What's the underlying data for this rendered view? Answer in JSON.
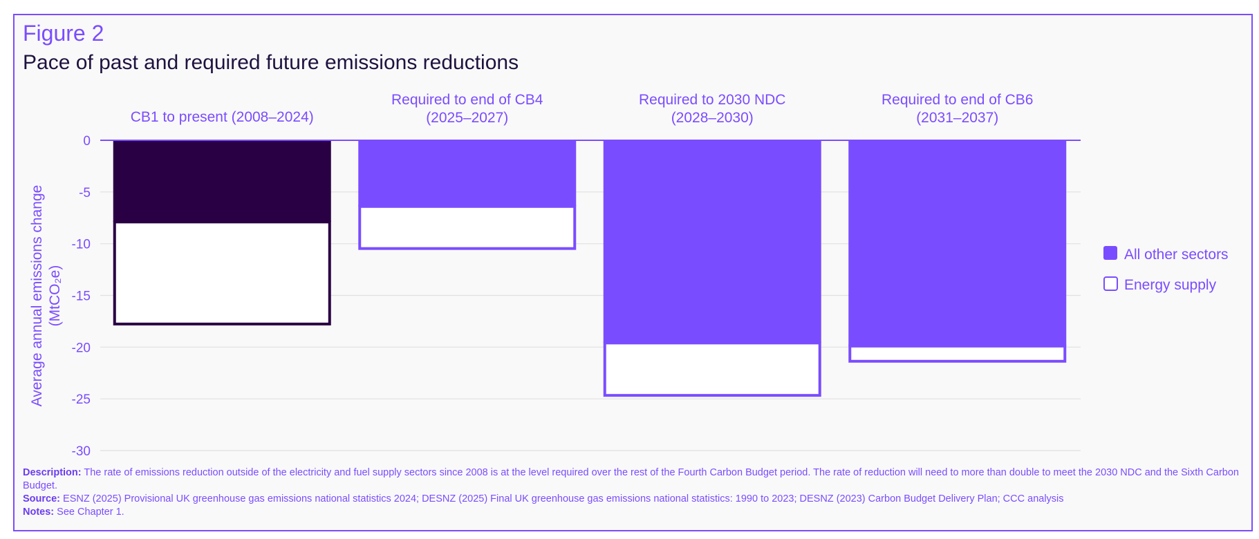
{
  "figure": {
    "label": "Figure 2",
    "title": "Pace of past and required future emissions reductions"
  },
  "chart_data": {
    "type": "bar",
    "stacked": true,
    "categories": [
      "CB1 to present (2008–2024)",
      "Required to end of CB4 (2025–2027)",
      "Required to 2030 NDC (2028–2030)",
      "Required to end of CB6 (2031–2037)"
    ],
    "category_lines": [
      [
        "CB1 to present (2008–2024)"
      ],
      [
        "Required to end of CB4",
        "(2025–2027)"
      ],
      [
        "Required to 2030 NDC",
        "(2028–2030)"
      ],
      [
        "Required to end of CB6",
        "(2031–2037)"
      ]
    ],
    "series": [
      {
        "name": "All other sectors",
        "values": [
          -7.9,
          -6.4,
          -19.6,
          -19.9
        ]
      },
      {
        "name": "Energy supply",
        "values": [
          -10.0,
          -4.2,
          -5.2,
          -1.6
        ]
      }
    ],
    "ylabel_lines": [
      "Average annual emissions change",
      "(MtCO₂e)"
    ],
    "ylim": [
      -30,
      0
    ],
    "yticks": [
      0,
      -5,
      -10,
      -15,
      -20,
      -25,
      -30
    ],
    "x_axis_position": "top",
    "grid": true,
    "legend": "right",
    "colors": {
      "all_other_sectors": "#7a4cff",
      "first_bar_all_other_sectors": "#2a0044",
      "first_bar_outline": "#2a0044",
      "energy_supply_fill": "#ffffff",
      "outline": "#7a4cff",
      "axis_text": "#7a4cff",
      "gridline": "#e0e0e0"
    }
  },
  "notes": {
    "description_label": "Description:",
    "description_text": " The rate of emissions reduction outside of the electricity and fuel supply sectors since 2008 is at the level required over the rest of the Fourth Carbon Budget period. The rate of reduction will need to more than double to meet the 2030 NDC and the Sixth Carbon Budget.",
    "source_label": "Source:",
    "source_text": " ESNZ (2025) Provisional UK greenhouse gas emissions national statistics 2024; DESNZ (2025) Final UK greenhouse gas emissions national statistics: 1990 to 2023; DESNZ (2023) Carbon Budget Delivery Plan; CCC analysis",
    "notes_label": "Notes:",
    "notes_text": " See Chapter 1."
  }
}
